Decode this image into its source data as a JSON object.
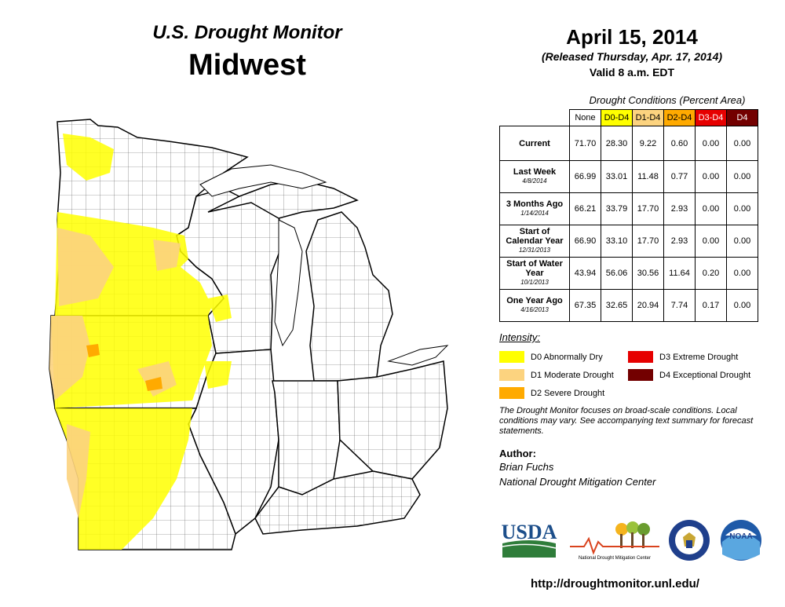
{
  "header": {
    "title_sub": "U.S. Drought Monitor",
    "title_main": "Midwest",
    "date": "April 15, 2014",
    "released": "(Released Thursday, Apr. 17, 2014)",
    "valid": "Valid  8 a.m. EDT"
  },
  "table": {
    "caption": "Drought Conditions (Percent Area)",
    "columns": [
      {
        "label": "None",
        "color": "#ffffff",
        "text_color": "#000000"
      },
      {
        "label": "D0-D4",
        "color": "#ffff00",
        "text_color": "#000000"
      },
      {
        "label": "D1-D4",
        "color": "#fcd37f",
        "text_color": "#000000"
      },
      {
        "label": "D2-D4",
        "color": "#ffaa00",
        "text_color": "#000000"
      },
      {
        "label": "D3-D4",
        "color": "#e60000",
        "text_color": "#ffffff"
      },
      {
        "label": "D4",
        "color": "#730000",
        "text_color": "#ffffff"
      }
    ],
    "rows": [
      {
        "label": "Current",
        "date": "",
        "values": [
          "71.70",
          "28.30",
          "9.22",
          "0.60",
          "0.00",
          "0.00"
        ]
      },
      {
        "label": "Last Week",
        "date": "4/8/2014",
        "values": [
          "66.99",
          "33.01",
          "11.48",
          "0.77",
          "0.00",
          "0.00"
        ]
      },
      {
        "label": "3 Months Ago",
        "date": "1/14/2014",
        "values": [
          "66.21",
          "33.79",
          "17.70",
          "2.93",
          "0.00",
          "0.00"
        ]
      },
      {
        "label": "Start of Calendar Year",
        "date": "12/31/2013",
        "values": [
          "66.90",
          "33.10",
          "17.70",
          "2.93",
          "0.00",
          "0.00"
        ]
      },
      {
        "label": "Start of Water Year",
        "date": "10/1/2013",
        "values": [
          "43.94",
          "56.06",
          "30.56",
          "11.64",
          "0.20",
          "0.00"
        ]
      },
      {
        "label": "One Year Ago",
        "date": "4/16/2013",
        "values": [
          "67.35",
          "32.65",
          "20.94",
          "7.74",
          "0.17",
          "0.00"
        ]
      }
    ]
  },
  "legend": {
    "title": "Intensity:",
    "items": [
      {
        "label": "D0 Abnormally Dry",
        "color": "#ffff00"
      },
      {
        "label": "D1 Moderate Drought",
        "color": "#fcd37f"
      },
      {
        "label": "D2 Severe Drought",
        "color": "#ffaa00"
      },
      {
        "label": "D3 Extreme Drought",
        "color": "#e60000"
      },
      {
        "label": "D4 Exceptional Drought",
        "color": "#730000"
      }
    ]
  },
  "note": "The Drought Monitor focuses on broad-scale conditions. Local conditions may vary. See accompanying text summary for forecast statements.",
  "author": {
    "label": "Author:",
    "name": "Brian Fuchs",
    "org": "National Drought Mitigation Center"
  },
  "logos": {
    "usda": "USDA",
    "ndmc": "National Drought Mitigation Center",
    "doc_icon": "department-of-commerce-seal",
    "noaa": "NOAA"
  },
  "url": "http://droughtmonitor.unl.edu/"
}
